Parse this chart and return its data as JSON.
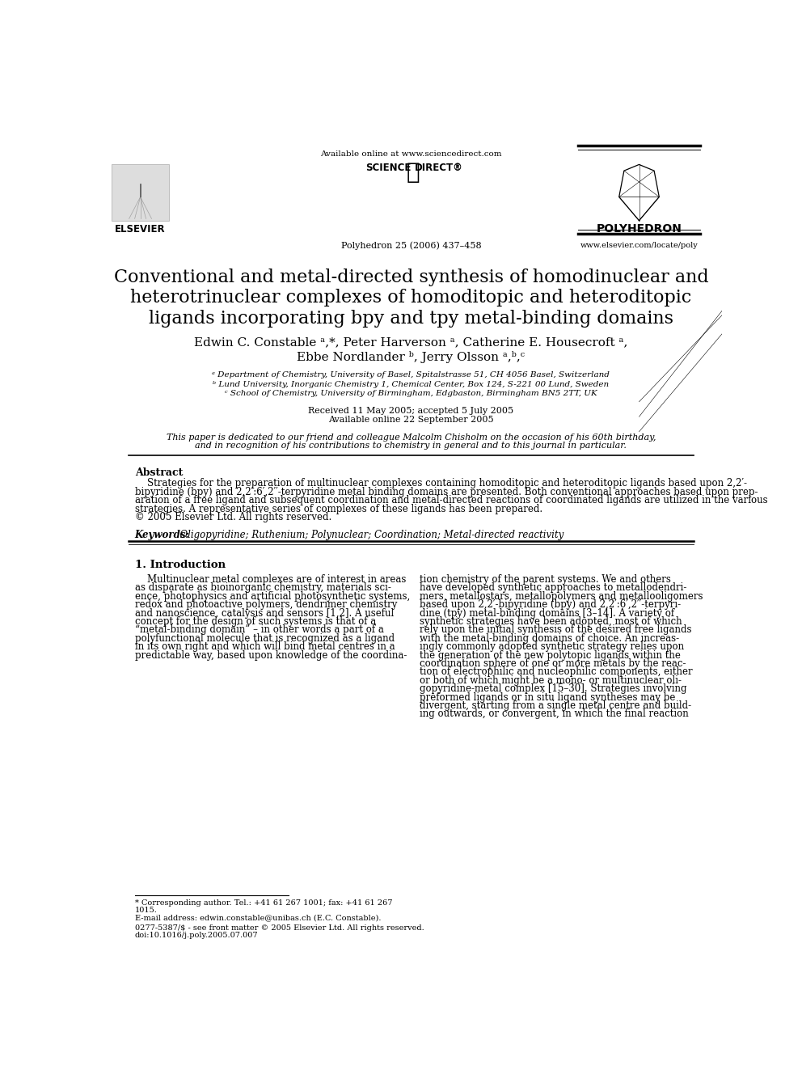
{
  "title_line1": "Conventional and metal-directed synthesis of homodinuclear and",
  "title_line2": "heterotrinuclear complexes of homoditopic and heteroditopic",
  "title_line3": "ligands incorporating bpy and tpy metal-binding domains",
  "authors_line1": "Edwin C. Constable ᵃ,*, Peter Harverson ᵃ, Catherine E. Housecroft ᵃ,",
  "authors_line2": "Ebbe Nordlander ᵇ, Jerry Olsson ᵃ,ᵇ,ᶜ",
  "affil_a": "ᵃ Department of Chemistry, University of Basel, Spitalstrasse 51, CH 4056 Basel, Switzerland",
  "affil_b": "ᵇ Lund University, Inorganic Chemistry 1, Chemical Center, Box 124, S-221 00 Lund, Sweden",
  "affil_c": "ᶜ School of Chemistry, University of Birmingham, Edgbaston, Birmingham BN5 2TT, UK",
  "received": "Received 11 May 2005; accepted 5 July 2005",
  "available": "Available online 22 September 2005",
  "dedication": "This paper is dedicated to our friend and colleague Malcolm Chisholm on the occasion of his 60th birthday,",
  "dedication2": "and in recognition of his contributions to chemistry in general and to this journal in particular.",
  "journal_info": "Polyhedron 25 (2006) 437–458",
  "available_online": "Available online at www.sciencedirect.com",
  "elsevier": "ELSEVIER",
  "polyhedron": "POLYHEDRON",
  "website": "www.elsevier.com/locate/poly",
  "abstract_title": "Abstract",
  "keywords_label": "Keywords:",
  "keywords_text": "  Oligopyridine; Ruthenium; Polynuclear; Coordination; Metal-directed reactivity",
  "section1_title": "1. Introduction",
  "footnote1": "* Corresponding author. Tel.: +41 61 267 1001; fax: +41 61 267",
  "footnote2": "1015.",
  "footnote3": "E-mail address: edwin.constable@unibas.ch (E.C. Constable).",
  "footnote4": "0277-5387/$ - see front matter © 2005 Elsevier Ltd. All rights reserved.",
  "footnote5": "doi:10.1016/j.poly.2005.07.007",
  "bg_color": "#ffffff",
  "text_color": "#000000",
  "abstract_lines": [
    "    Strategies for the preparation of multinuclear complexes containing homoditopic and heteroditopic ligands based upon 2,2′-",
    "bipyridine (bpy) and 2,2′:6′,2′′-terpyridine metal binding domains are presented. Both conventional approaches based upon prep-",
    "aration of a free ligand and subsequent coordination and metal-directed reactions of coordinated ligands are utilized in the various",
    "strategies. A representative series of complexes of these ligands has been prepared.",
    "© 2005 Elsevier Ltd. All rights reserved."
  ],
  "col1_lines": [
    "    Multinuclear metal complexes are of interest in areas",
    "as disparate as bioinorganic chemistry, materials sci-",
    "ence, photophysics and artificial photosynthetic systems,",
    "redox and photoactive polymers, dendrimer chemistry",
    "and nanoscience, catalysis and sensors [1,2]. A useful",
    "concept for the design of such systems is that of a",
    "“metal-binding domain” – in other words a part of a",
    "polyfunctional molecule that is recognized as a ligand",
    "in its own right and which will bind metal centres in a",
    "predictable way, based upon knowledge of the coordina-"
  ],
  "col2_lines": [
    "tion chemistry of the parent systems. We and others",
    "have developed synthetic approaches to metallodendri-",
    "mers, metallostars, metallopolymers and metallooligomers",
    "based upon 2,2′-bipyridine (bpy) and 2,2′:6′,2′′-terpyri-",
    "dine (tpy) metal-binding domains [3–14]. A variety of",
    "synthetic strategies have been adopted, most of which",
    "rely upon the initial synthesis of the desired free ligands",
    "with the metal-binding domains of choice. An increas-",
    "ingly commonly adopted synthetic strategy relies upon",
    "the generation of the new polytopic ligands within the",
    "coordination sphere of one or more metals by the reac-",
    "tion of electrophilic and nucleophilic components, either",
    "or both of which might be a mono- or multinuclear oli-",
    "gopyridine-metal complex [15–30]. Strategies involving",
    "preformed ligands or in situ ligand syntheses may be",
    "divergent, starting from a single metal centre and build-",
    "ing outwards, or convergent, in which the final reaction"
  ]
}
